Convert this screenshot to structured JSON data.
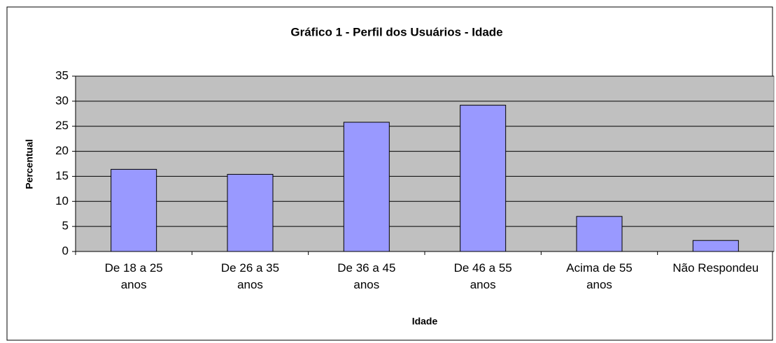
{
  "chart_data": {
    "type": "bar",
    "title": "Gráfico 1 - Perfil dos Usuários - Idade",
    "x_label": "Idade",
    "y_label": "Percentual",
    "categories": [
      "De 18 a 25\nanos",
      "De 26 a 35\nanos",
      "De 36 a 45\nanos",
      "De 46 a 55\nanos",
      "Acima de 55\nanos",
      "Não Respondeu"
    ],
    "values": [
      16.4,
      15.4,
      25.8,
      29.2,
      7.0,
      2.2
    ],
    "color": "#9999ff",
    "ylim": [
      0,
      35
    ],
    "yticks": [
      0,
      5,
      10,
      15,
      20,
      25,
      30,
      35
    ],
    "grid": true
  }
}
